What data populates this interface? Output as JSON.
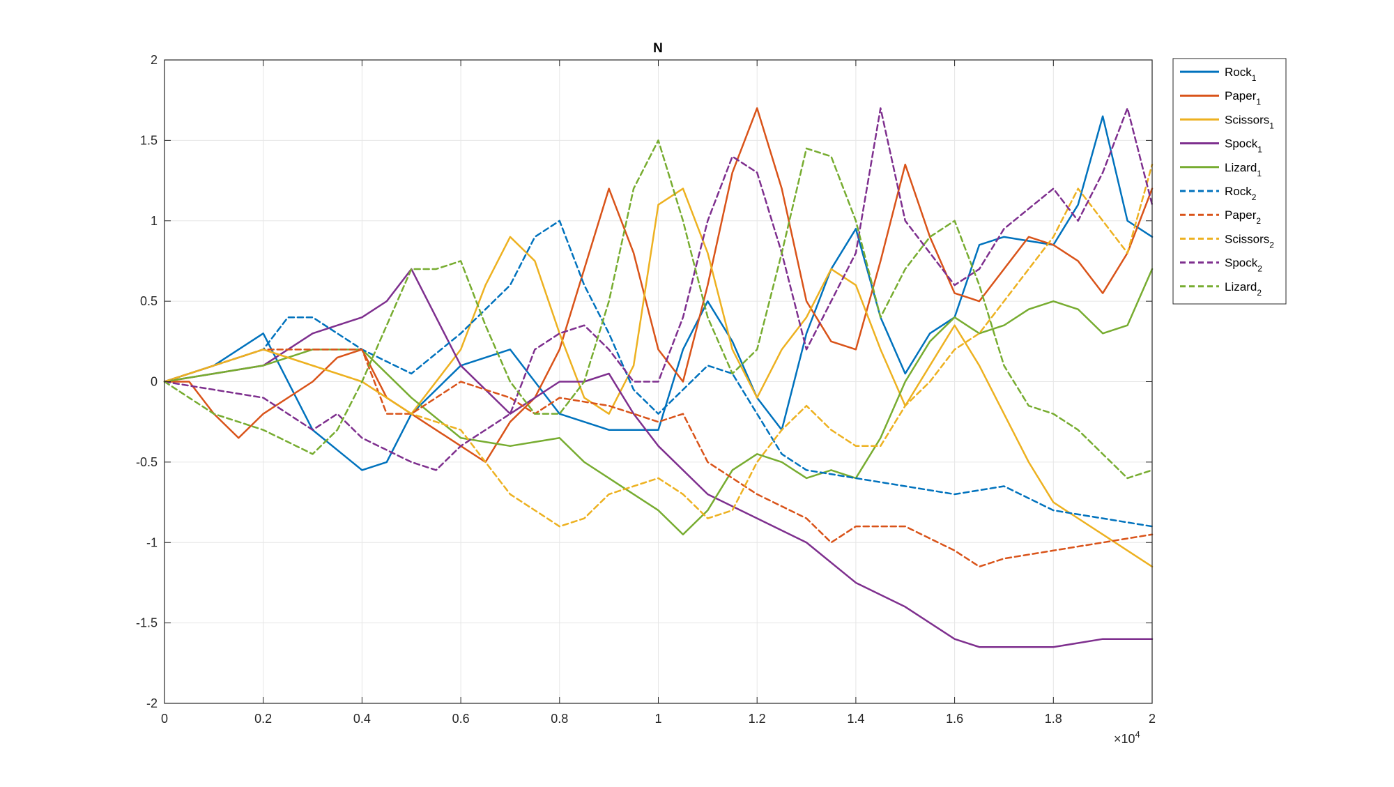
{
  "chart_data": {
    "type": "line",
    "title": "N",
    "xlabel": "",
    "ylabel": "",
    "xlim": [
      0,
      20000
    ],
    "ylim": [
      -2,
      2
    ],
    "x_exponent_label": "×10",
    "x_exponent_power": "4",
    "x_ticks": [
      0,
      2000,
      4000,
      6000,
      8000,
      10000,
      12000,
      14000,
      16000,
      18000,
      20000
    ],
    "x_tick_labels": [
      "0",
      "0.2",
      "0.4",
      "0.6",
      "0.8",
      "1",
      "1.2",
      "1.4",
      "1.6",
      "1.8",
      "2"
    ],
    "y_ticks": [
      2,
      1.5,
      1,
      0.5,
      0,
      -0.5,
      -1,
      -1.5,
      -2
    ],
    "y_tick_labels": [
      "2",
      "1.5",
      "1",
      "0.5",
      "0",
      "-0.5",
      "-1",
      "-1.5",
      "-2"
    ],
    "grid": true,
    "legend_position": "outside-top-right",
    "series": [
      {
        "name": "Rock",
        "sub": "1",
        "color": "#0072BD",
        "style": "solid",
        "x": [
          0,
          1000,
          2000,
          3000,
          4000,
          4500,
          5000,
          6000,
          7000,
          8000,
          8500,
          9000,
          10000,
          10500,
          11000,
          11500,
          12000,
          12500,
          13000,
          13500,
          14000,
          14500,
          15000,
          15500,
          16000,
          16500,
          17000,
          18000,
          18500,
          19000,
          19500,
          20000
        ],
        "y": [
          0,
          0.1,
          0.3,
          -0.3,
          -0.55,
          -0.5,
          -0.2,
          0.1,
          0.2,
          -0.2,
          -0.25,
          -0.3,
          -0.3,
          0.2,
          0.5,
          0.25,
          -0.1,
          -0.3,
          0.3,
          0.7,
          0.95,
          0.4,
          0.05,
          0.3,
          0.4,
          0.85,
          0.9,
          0.85,
          1.1,
          1.65,
          1.0,
          0.9
        ]
      },
      {
        "name": "Paper",
        "sub": "1",
        "color": "#D95319",
        "style": "solid",
        "x": [
          0,
          500,
          1000,
          1500,
          2000,
          3000,
          3500,
          4000,
          4500,
          5000,
          6000,
          6500,
          7000,
          7500,
          8000,
          8500,
          9000,
          9500,
          10000,
          10500,
          11000,
          11500,
          12000,
          12500,
          13000,
          13500,
          14000,
          14500,
          15000,
          15500,
          16000,
          16500,
          17000,
          17500,
          18000,
          18500,
          19000,
          19500,
          20000
        ],
        "y": [
          0,
          0,
          -0.2,
          -0.35,
          -0.2,
          0.0,
          0.15,
          0.2,
          -0.1,
          -0.2,
          -0.4,
          -0.5,
          -0.25,
          -0.1,
          0.2,
          0.7,
          1.2,
          0.8,
          0.2,
          0.0,
          0.6,
          1.3,
          1.7,
          1.2,
          0.5,
          0.25,
          0.2,
          0.75,
          1.35,
          0.9,
          0.55,
          0.5,
          0.7,
          0.9,
          0.85,
          0.75,
          0.55,
          0.8,
          1.2
        ]
      },
      {
        "name": "Scissors",
        "sub": "1",
        "color": "#EDB120",
        "style": "solid",
        "x": [
          0,
          1000,
          2000,
          3000,
          4000,
          5000,
          6000,
          6500,
          7000,
          7500,
          8000,
          8500,
          9000,
          9500,
          10000,
          10500,
          11000,
          11500,
          12000,
          12500,
          13000,
          13500,
          14000,
          14500,
          15000,
          15500,
          16000,
          16500,
          17000,
          17500,
          18000,
          18500,
          19000,
          19500,
          20000
        ],
        "y": [
          0,
          0.1,
          0.2,
          0.1,
          0.0,
          -0.2,
          0.2,
          0.6,
          0.9,
          0.75,
          0.3,
          -0.1,
          -0.2,
          0.1,
          1.1,
          1.2,
          0.8,
          0.2,
          -0.1,
          0.2,
          0.4,
          0.7,
          0.6,
          0.2,
          -0.15,
          0.1,
          0.35,
          0.1,
          -0.2,
          -0.5,
          -0.75,
          -0.85,
          -0.95,
          -1.05,
          -1.15
        ]
      },
      {
        "name": "Spock",
        "sub": "1",
        "color": "#7E2F8E",
        "style": "solid",
        "x": [
          0,
          1000,
          2000,
          3000,
          4000,
          4500,
          5000,
          5500,
          6000,
          7000,
          8000,
          8500,
          9000,
          9500,
          10000,
          11000,
          12000,
          13000,
          14000,
          15000,
          16000,
          16500,
          17000,
          18000,
          19000,
          20000
        ],
        "y": [
          0,
          0.05,
          0.1,
          0.3,
          0.4,
          0.5,
          0.7,
          0.4,
          0.1,
          -0.2,
          0.0,
          0.0,
          0.05,
          -0.2,
          -0.4,
          -0.7,
          -0.85,
          -1.0,
          -1.25,
          -1.4,
          -1.6,
          -1.65,
          -1.65,
          -1.65,
          -1.6,
          -1.6
        ]
      },
      {
        "name": "Lizard",
        "sub": "1",
        "color": "#77AC30",
        "style": "solid",
        "x": [
          0,
          1000,
          2000,
          3000,
          4000,
          5000,
          6000,
          7000,
          8000,
          8500,
          9000,
          10000,
          10500,
          11000,
          11500,
          12000,
          12500,
          13000,
          13500,
          14000,
          14500,
          15000,
          15500,
          16000,
          16500,
          17000,
          17500,
          18000,
          18500,
          19000,
          19500,
          20000
        ],
        "y": [
          0,
          0.05,
          0.1,
          0.2,
          0.2,
          -0.1,
          -0.35,
          -0.4,
          -0.35,
          -0.5,
          -0.6,
          -0.8,
          -0.95,
          -0.8,
          -0.55,
          -0.45,
          -0.5,
          -0.6,
          -0.55,
          -0.6,
          -0.35,
          0.0,
          0.25,
          0.4,
          0.3,
          0.35,
          0.45,
          0.5,
          0.45,
          0.3,
          0.35,
          0.7
        ]
      },
      {
        "name": "Rock",
        "sub": "2",
        "color": "#0072BD",
        "style": "dashed",
        "x": [
          0,
          1000,
          2000,
          2500,
          3000,
          4000,
          5000,
          6000,
          7000,
          7500,
          8000,
          8500,
          9000,
          9500,
          10000,
          11000,
          11500,
          12000,
          12500,
          13000,
          14000,
          15000,
          16000,
          17000,
          18000,
          19000,
          20000
        ],
        "y": [
          0,
          0.1,
          0.2,
          0.4,
          0.4,
          0.2,
          0.05,
          0.3,
          0.6,
          0.9,
          1.0,
          0.6,
          0.3,
          -0.05,
          -0.2,
          0.1,
          0.05,
          -0.2,
          -0.45,
          -0.55,
          -0.6,
          -0.65,
          -0.7,
          -0.65,
          -0.8,
          -0.85,
          -0.9
        ]
      },
      {
        "name": "Paper",
        "sub": "2",
        "color": "#D95319",
        "style": "dashed",
        "x": [
          0,
          1000,
          2000,
          3000,
          4000,
          4500,
          5000,
          6000,
          7000,
          7500,
          8000,
          9000,
          10000,
          10500,
          11000,
          11500,
          12000,
          13000,
          13500,
          14000,
          15000,
          16000,
          16500,
          17000,
          18000,
          19000,
          20000
        ],
        "y": [
          0,
          0.1,
          0.2,
          0.2,
          0.2,
          -0.2,
          -0.2,
          0.0,
          -0.1,
          -0.2,
          -0.1,
          -0.15,
          -0.25,
          -0.2,
          -0.5,
          -0.6,
          -0.7,
          -0.85,
          -1.0,
          -0.9,
          -0.9,
          -1.05,
          -1.15,
          -1.1,
          -1.05,
          -1.0,
          -0.95
        ]
      },
      {
        "name": "Scissors",
        "sub": "2",
        "color": "#EDB120",
        "style": "dashed",
        "x": [
          0,
          1000,
          2000,
          3000,
          4000,
          5000,
          6000,
          7000,
          8000,
          8500,
          9000,
          9500,
          10000,
          10500,
          11000,
          11500,
          12000,
          12500,
          13000,
          13500,
          14000,
          14500,
          15000,
          15500,
          16000,
          16500,
          17000,
          17500,
          18000,
          18500,
          19000,
          19500,
          20000
        ],
        "y": [
          0,
          0.1,
          0.2,
          0.1,
          0.0,
          -0.2,
          -0.3,
          -0.7,
          -0.9,
          -0.85,
          -0.7,
          -0.65,
          -0.6,
          -0.7,
          -0.85,
          -0.8,
          -0.5,
          -0.3,
          -0.15,
          -0.3,
          -0.4,
          -0.4,
          -0.15,
          0.0,
          0.2,
          0.3,
          0.5,
          0.7,
          0.9,
          1.2,
          1.0,
          0.8,
          1.35
        ]
      },
      {
        "name": "Spock",
        "sub": "2",
        "color": "#7E2F8E",
        "style": "dashed",
        "x": [
          0,
          1000,
          2000,
          3000,
          3500,
          4000,
          5000,
          5500,
          6000,
          7000,
          7500,
          8000,
          8500,
          9000,
          9500,
          10000,
          10500,
          11000,
          11500,
          12000,
          12500,
          13000,
          13500,
          14000,
          14500,
          15000,
          15500,
          16000,
          16500,
          17000,
          18000,
          18500,
          19000,
          19500,
          20000
        ],
        "y": [
          0,
          -0.05,
          -0.1,
          -0.3,
          -0.2,
          -0.35,
          -0.5,
          -0.55,
          -0.4,
          -0.2,
          0.2,
          0.3,
          0.35,
          0.2,
          0.0,
          0.0,
          0.4,
          1.0,
          1.4,
          1.3,
          0.8,
          0.2,
          0.5,
          0.8,
          1.7,
          1.0,
          0.8,
          0.6,
          0.7,
          0.95,
          1.2,
          1.0,
          1.3,
          1.7,
          1.1
        ]
      },
      {
        "name": "Lizard",
        "sub": "2",
        "color": "#77AC30",
        "style": "dashed",
        "x": [
          0,
          1000,
          2000,
          3000,
          3500,
          4000,
          4500,
          5000,
          5500,
          6000,
          6500,
          7000,
          7500,
          8000,
          8500,
          9000,
          9500,
          10000,
          10500,
          11000,
          11500,
          12000,
          12500,
          13000,
          13500,
          14000,
          14500,
          15000,
          15500,
          16000,
          16500,
          17000,
          17500,
          18000,
          18500,
          19000,
          19500,
          20000
        ],
        "y": [
          0,
          -0.2,
          -0.3,
          -0.45,
          -0.3,
          0.0,
          0.35,
          0.7,
          0.7,
          0.75,
          0.35,
          0.0,
          -0.2,
          -0.2,
          0.0,
          0.5,
          1.2,
          1.5,
          1.0,
          0.4,
          0.05,
          0.2,
          0.8,
          1.45,
          1.4,
          1.0,
          0.4,
          0.7,
          0.9,
          1.0,
          0.6,
          0.1,
          -0.15,
          -0.2,
          -0.3,
          -0.45,
          -0.6,
          -0.55
        ]
      }
    ]
  }
}
